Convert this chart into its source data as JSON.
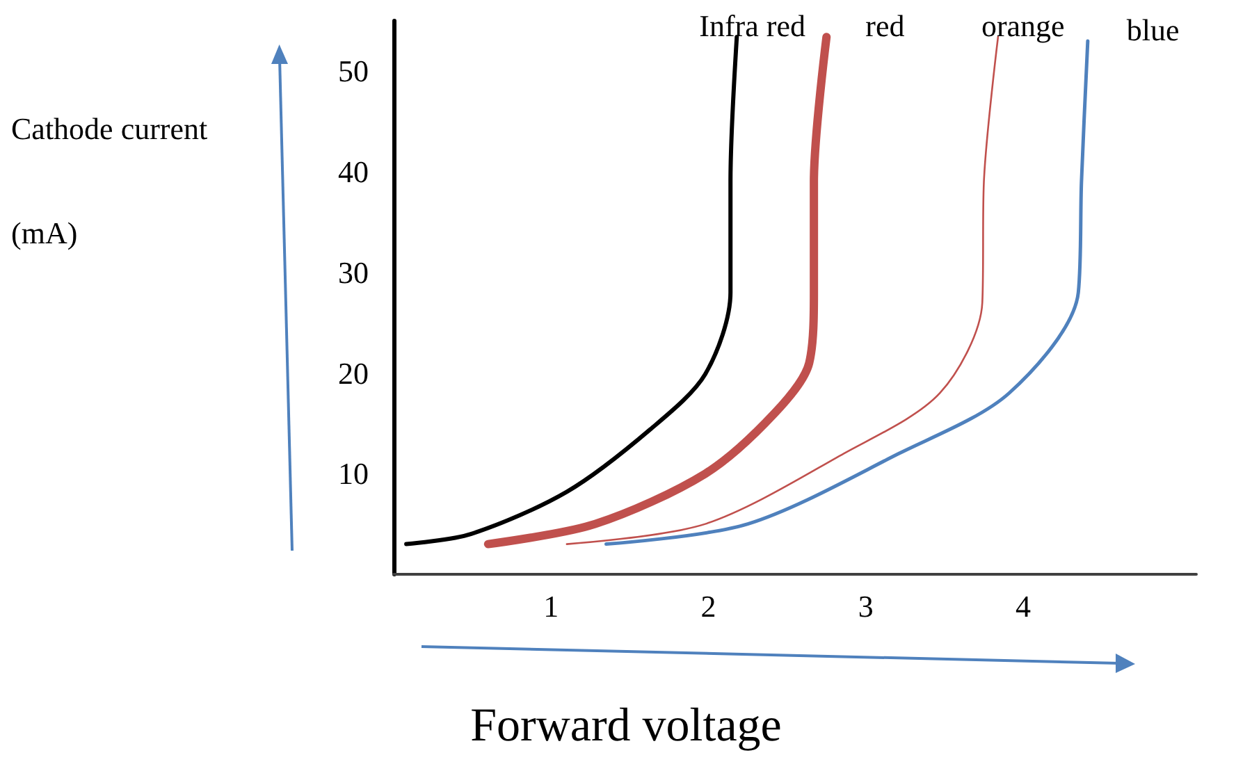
{
  "chart_data": {
    "type": "line",
    "xlabel": "Forward voltage",
    "ylabel": "Cathode current (mA)",
    "xlim": [
      0,
      5.1
    ],
    "xticks": [
      1,
      2,
      3,
      4
    ],
    "ylim": [
      0,
      55
    ],
    "yticks": [
      10,
      20,
      30,
      40,
      50
    ],
    "grid": false,
    "legend": false,
    "marker": "none",
    "line_style": "solid",
    "series": [
      {
        "name": "Infra red",
        "color": "#000000",
        "x": [
          0.08,
          0.49,
          1.1,
          1.63,
          1.98,
          2.14,
          2.14,
          2.18
        ],
        "values": [
          3,
          4,
          8.2,
          14.4,
          19.9,
          28,
          39,
          53.4
        ]
      },
      {
        "name": "red",
        "color": "#c0504d",
        "x": [
          0.6,
          1.28,
          1.98,
          2.42,
          2.64,
          2.67,
          2.67,
          2.75
        ],
        "values": [
          3,
          5,
          10,
          16,
          21,
          28,
          39,
          53.4
        ]
      },
      {
        "name": "orange",
        "color": "#c0504d",
        "x": [
          1.1,
          1.98,
          2.86,
          3.47,
          3.74,
          3.75,
          3.84
        ],
        "values": [
          3,
          5,
          12,
          18,
          27,
          39,
          53.4
        ]
      },
      {
        "name": "blue",
        "color": "#4f81bd",
        "x": [
          1.35,
          2.25,
          3.21,
          3.91,
          4.35,
          4.37,
          4.41
        ],
        "values": [
          3,
          5,
          12,
          18,
          28,
          39,
          53
        ]
      }
    ]
  }
}
